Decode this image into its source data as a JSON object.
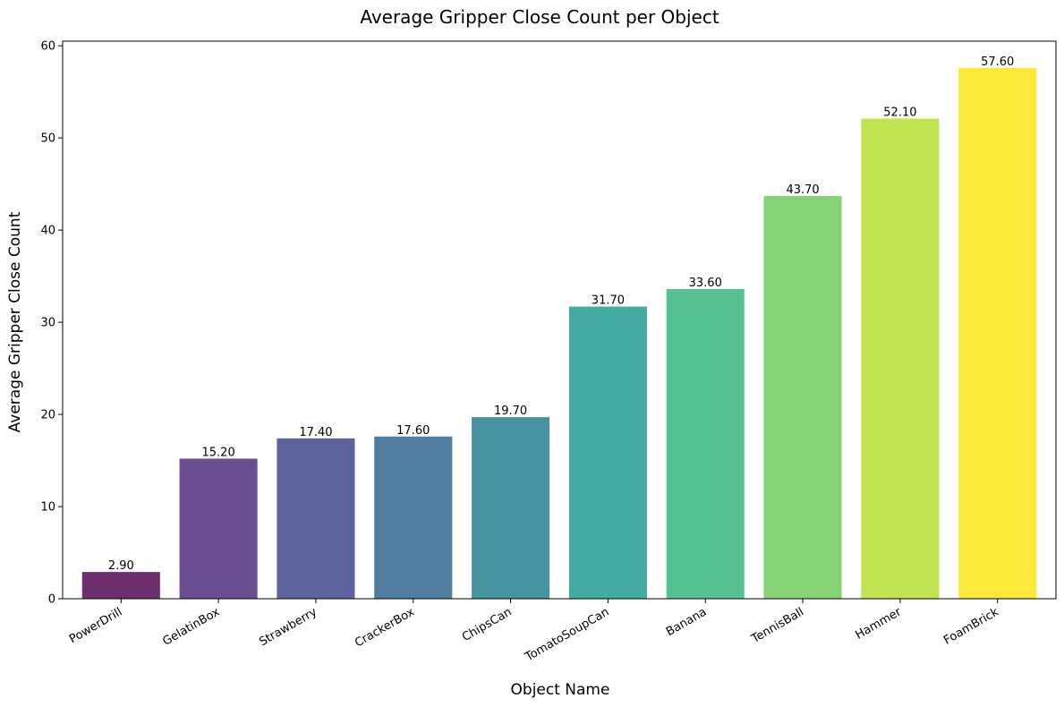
{
  "chart_data": {
    "type": "bar",
    "title": "Average Gripper Close Count per Object",
    "xlabel": "Object Name",
    "ylabel": "Average Gripper Close Count",
    "categories": [
      "PowerDrill",
      "GelatinBox",
      "Strawberry",
      "CrackerBox",
      "ChipsCan",
      "TomatoSoupCan",
      "Banana",
      "TennisBall",
      "Hammer",
      "FoamBrick"
    ],
    "values": [
      2.9,
      15.2,
      17.4,
      17.6,
      19.7,
      31.7,
      33.6,
      43.7,
      52.1,
      57.6
    ],
    "value_labels": [
      "2.90",
      "15.20",
      "17.40",
      "17.60",
      "19.70",
      "31.70",
      "33.60",
      "43.70",
      "52.10",
      "57.60"
    ],
    "colors": [
      "#5c1a62",
      "#5b3b85",
      "#4b5292",
      "#3e6f96",
      "#338897",
      "#30a396",
      "#44bb85",
      "#79ce66",
      "#bae140",
      "#fde725"
    ],
    "bar_opacity": 0.9,
    "yticks": [
      0,
      10,
      20,
      30,
      40,
      50,
      60
    ],
    "ylim": [
      0,
      60.5
    ],
    "grid": false,
    "legend": "none"
  }
}
